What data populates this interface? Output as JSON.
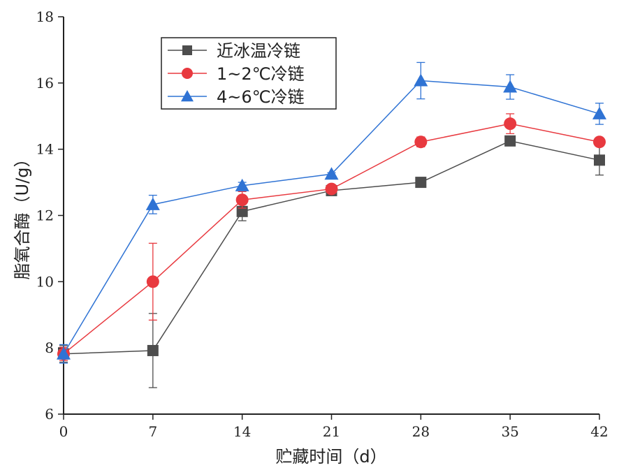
{
  "chart_data": {
    "type": "line",
    "title": "",
    "xlabel": "贮藏时间（d）",
    "ylabel": "脂氧合酶（U/g）",
    "x": [
      0,
      7,
      14,
      21,
      28,
      35,
      42
    ],
    "x_ticks": [
      "0",
      "7",
      "14",
      "21",
      "28",
      "35",
      "42"
    ],
    "y_ticks": [
      "6",
      "8",
      "10",
      "12",
      "14",
      "16",
      "18"
    ],
    "xlim": [
      0,
      42
    ],
    "ylim": [
      6,
      18
    ],
    "grid": false,
    "legend_position": "top-left",
    "series": [
      {
        "name": "近冰温冷链",
        "color": "#4d4d4d",
        "marker": "square",
        "values": [
          7.82,
          7.92,
          12.12,
          12.75,
          13.0,
          14.25,
          13.67
        ],
        "errors": [
          0.25,
          1.12,
          0.28,
          0.06,
          0.05,
          0.12,
          0.45
        ]
      },
      {
        "name": "1~2℃冷链",
        "color": "#e8393f",
        "marker": "circle",
        "values": [
          7.82,
          10.0,
          12.47,
          12.8,
          14.22,
          14.77,
          14.22
        ],
        "errors": [
          0.2,
          1.16,
          0.25,
          0.06,
          0.15,
          0.3,
          0.06
        ]
      },
      {
        "name": "4~6℃冷链",
        "color": "#2f73d4",
        "marker": "triangle",
        "values": [
          7.82,
          12.33,
          12.9,
          13.25,
          16.07,
          15.88,
          15.07
        ],
        "errors": [
          0.28,
          0.28,
          0.1,
          0.04,
          0.55,
          0.37,
          0.32
        ]
      }
    ]
  }
}
